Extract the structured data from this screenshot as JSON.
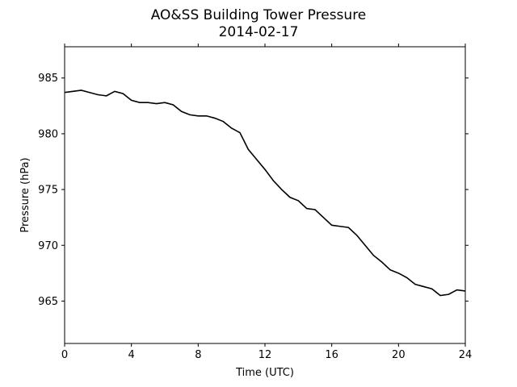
{
  "chart_data": {
    "type": "line",
    "title": "AO&SS Building Tower Pressure",
    "subtitle": "2014-02-17",
    "xlabel": "Time (UTC)",
    "ylabel": "Pressure (hPa)",
    "xlim": [
      0,
      24
    ],
    "ylim": [
      961.2,
      987.8
    ],
    "xticks": [
      0,
      4,
      8,
      12,
      16,
      20,
      24
    ],
    "yticks": [
      965,
      970,
      975,
      980,
      985
    ],
    "grid": false,
    "line_color": "#000000",
    "series": [
      {
        "x": [
          0,
          0.5,
          1,
          1.5,
          2,
          2.5,
          3,
          3.5,
          4,
          4.5,
          5,
          5.5,
          6,
          6.5,
          7,
          7.5,
          8,
          8.5,
          9,
          9.5,
          10,
          10.5,
          11,
          11.5,
          12,
          12.5,
          13,
          13.5,
          14,
          14.5,
          15,
          15.5,
          16,
          16.5,
          17,
          17.5,
          18,
          18.5,
          19,
          19.5,
          20,
          20.5,
          21,
          21.5,
          22,
          22.5,
          23,
          23.5,
          24
        ],
        "values": [
          983.7,
          983.8,
          983.9,
          983.7,
          983.5,
          983.4,
          983.8,
          983.6,
          983.0,
          982.8,
          982.8,
          982.7,
          982.8,
          982.6,
          982.0,
          981.7,
          981.6,
          981.6,
          981.4,
          981.1,
          980.5,
          980.1,
          978.6,
          977.7,
          976.8,
          975.8,
          975.0,
          974.3,
          974.0,
          973.3,
          973.2,
          972.5,
          971.8,
          971.7,
          971.6,
          970.9,
          970.0,
          969.1,
          968.5,
          967.8,
          967.5,
          967.1,
          966.5,
          966.3,
          966.1,
          965.5,
          965.6,
          966.0,
          965.9
        ]
      }
    ]
  }
}
